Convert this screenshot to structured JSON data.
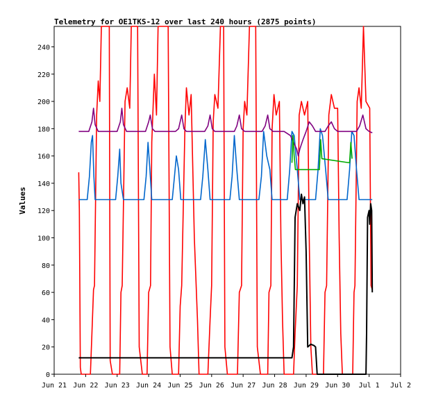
{
  "chart_data": {
    "type": "line",
    "title": "Telemetry for OE1TKS-12 over last 240 hours (2875 points)",
    "xlabel": "",
    "ylabel": "Values",
    "ylim": [
      0,
      255
    ],
    "yticks": [
      0,
      20,
      40,
      60,
      80,
      100,
      120,
      140,
      160,
      180,
      200,
      220,
      240
    ],
    "xlim": [
      0,
      11
    ],
    "xticks": [
      {
        "x": 0,
        "label": "Jun 21"
      },
      {
        "x": 1,
        "label": "Jun 22"
      },
      {
        "x": 2,
        "label": "Jun 23"
      },
      {
        "x": 3,
        "label": "Jun 24"
      },
      {
        "x": 4,
        "label": "Jun 25"
      },
      {
        "x": 5,
        "label": "Jun 26"
      },
      {
        "x": 6,
        "label": "Jun 27"
      },
      {
        "x": 7,
        "label": "Jun 28"
      },
      {
        "x": 8,
        "label": "Jun 29"
      },
      {
        "x": 9,
        "label": "Jun 30"
      },
      {
        "x": 10,
        "label": "Jul 1"
      },
      {
        "x": 11,
        "label": "Jul 2"
      }
    ],
    "grid": false,
    "legend": "none",
    "series": [
      {
        "color": "#ff0000",
        "points": [
          [
            0.78,
            148
          ],
          [
            0.8,
            120
          ],
          [
            0.83,
            5
          ],
          [
            0.86,
            0
          ],
          [
            1.15,
            0
          ],
          [
            1.2,
            30
          ],
          [
            1.25,
            62
          ],
          [
            1.28,
            65
          ],
          [
            1.35,
            190
          ],
          [
            1.4,
            215
          ],
          [
            1.45,
            200
          ],
          [
            1.5,
            255
          ],
          [
            1.75,
            255
          ],
          [
            1.78,
            10
          ],
          [
            1.85,
            0
          ],
          [
            2.08,
            0
          ],
          [
            2.12,
            60
          ],
          [
            2.16,
            65
          ],
          [
            2.25,
            200
          ],
          [
            2.32,
            210
          ],
          [
            2.4,
            195
          ],
          [
            2.45,
            255
          ],
          [
            2.65,
            255
          ],
          [
            2.7,
            20
          ],
          [
            2.8,
            0
          ],
          [
            2.95,
            0
          ],
          [
            3.0,
            60
          ],
          [
            3.06,
            65
          ],
          [
            3.1,
            170
          ],
          [
            3.18,
            220
          ],
          [
            3.25,
            190
          ],
          [
            3.3,
            255
          ],
          [
            3.62,
            255
          ],
          [
            3.68,
            20
          ],
          [
            3.75,
            0
          ],
          [
            3.95,
            0
          ],
          [
            4.0,
            50
          ],
          [
            4.05,
            65
          ],
          [
            4.15,
            180
          ],
          [
            4.2,
            210
          ],
          [
            4.28,
            190
          ],
          [
            4.35,
            205
          ],
          [
            4.45,
            100
          ],
          [
            4.55,
            40
          ],
          [
            4.6,
            0
          ],
          [
            4.88,
            0
          ],
          [
            4.95,
            40
          ],
          [
            5.0,
            65
          ],
          [
            5.05,
            185
          ],
          [
            5.1,
            205
          ],
          [
            5.2,
            195
          ],
          [
            5.28,
            255
          ],
          [
            5.38,
            255
          ],
          [
            5.42,
            20
          ],
          [
            5.5,
            0
          ],
          [
            5.82,
            0
          ],
          [
            5.88,
            60
          ],
          [
            5.95,
            65
          ],
          [
            6.0,
            180
          ],
          [
            6.05,
            200
          ],
          [
            6.12,
            190
          ],
          [
            6.2,
            255
          ],
          [
            6.4,
            255
          ],
          [
            6.45,
            20
          ],
          [
            6.55,
            0
          ],
          [
            6.78,
            0
          ],
          [
            6.82,
            60
          ],
          [
            6.88,
            65
          ],
          [
            6.92,
            180
          ],
          [
            6.98,
            205
          ],
          [
            7.05,
            190
          ],
          [
            7.15,
            200
          ],
          [
            7.2,
            100
          ],
          [
            7.25,
            40
          ],
          [
            7.3,
            0
          ],
          [
            7.6,
            0
          ],
          [
            7.65,
            30
          ],
          [
            7.72,
            65
          ],
          [
            7.78,
            190
          ],
          [
            7.85,
            200
          ],
          [
            7.95,
            190
          ],
          [
            8.05,
            200
          ],
          [
            8.1,
            100
          ],
          [
            8.15,
            20
          ],
          [
            8.2,
            0
          ],
          [
            8.55,
            0
          ],
          [
            8.6,
            60
          ],
          [
            8.65,
            65
          ],
          [
            8.72,
            190
          ],
          [
            8.8,
            205
          ],
          [
            8.9,
            195
          ],
          [
            9.0,
            195
          ],
          [
            9.05,
            100
          ],
          [
            9.1,
            30
          ],
          [
            9.15,
            0
          ],
          [
            9.48,
            0
          ],
          [
            9.52,
            60
          ],
          [
            9.55,
            65
          ],
          [
            9.62,
            200
          ],
          [
            9.68,
            210
          ],
          [
            9.75,
            195
          ],
          [
            9.82,
            255
          ],
          [
            9.9,
            200
          ],
          [
            10.02,
            195
          ],
          [
            10.06,
            65
          ],
          [
            10.1,
            62
          ]
        ]
      },
      {
        "color": "#0066cc",
        "points": [
          [
            0.78,
            128
          ],
          [
            0.9,
            128
          ],
          [
            1.05,
            128
          ],
          [
            1.12,
            145
          ],
          [
            1.18,
            170
          ],
          [
            1.22,
            175
          ],
          [
            1.26,
            145
          ],
          [
            1.3,
            128
          ],
          [
            1.4,
            128
          ],
          [
            1.95,
            128
          ],
          [
            2.02,
            145
          ],
          [
            2.08,
            165
          ],
          [
            2.12,
            140
          ],
          [
            2.2,
            128
          ],
          [
            2.85,
            128
          ],
          [
            2.92,
            145
          ],
          [
            2.98,
            170
          ],
          [
            3.04,
            150
          ],
          [
            3.1,
            128
          ],
          [
            3.75,
            128
          ],
          [
            3.82,
            145
          ],
          [
            3.88,
            160
          ],
          [
            3.95,
            150
          ],
          [
            4.02,
            128
          ],
          [
            4.65,
            128
          ],
          [
            4.72,
            145
          ],
          [
            4.8,
            172
          ],
          [
            4.88,
            150
          ],
          [
            4.95,
            128
          ],
          [
            5.58,
            128
          ],
          [
            5.65,
            145
          ],
          [
            5.72,
            175
          ],
          [
            5.8,
            150
          ],
          [
            5.88,
            128
          ],
          [
            6.5,
            128
          ],
          [
            6.58,
            145
          ],
          [
            6.65,
            178
          ],
          [
            6.75,
            160
          ],
          [
            6.85,
            150
          ],
          [
            6.92,
            128
          ],
          [
            7.4,
            128
          ],
          [
            7.48,
            150
          ],
          [
            7.55,
            178
          ],
          [
            7.62,
            175
          ],
          [
            7.72,
            150
          ],
          [
            7.8,
            128
          ],
          [
            8.3,
            128
          ],
          [
            8.38,
            150
          ],
          [
            8.45,
            180
          ],
          [
            8.52,
            175
          ],
          [
            8.62,
            150
          ],
          [
            8.7,
            128
          ],
          [
            9.3,
            128
          ],
          [
            9.38,
            150
          ],
          [
            9.45,
            178
          ],
          [
            9.52,
            175
          ],
          [
            9.6,
            150
          ],
          [
            9.68,
            128
          ],
          [
            10.1,
            128
          ]
        ]
      },
      {
        "color": "#800080",
        "points": [
          [
            0.78,
            178
          ],
          [
            1.1,
            178
          ],
          [
            1.2,
            185
          ],
          [
            1.25,
            195
          ],
          [
            1.3,
            183
          ],
          [
            1.4,
            178
          ],
          [
            2.0,
            178
          ],
          [
            2.1,
            185
          ],
          [
            2.15,
            195
          ],
          [
            2.2,
            183
          ],
          [
            2.3,
            178
          ],
          [
            2.9,
            178
          ],
          [
            3.0,
            185
          ],
          [
            3.05,
            190
          ],
          [
            3.12,
            180
          ],
          [
            3.2,
            178
          ],
          [
            3.85,
            178
          ],
          [
            3.95,
            180
          ],
          [
            4.05,
            190
          ],
          [
            4.12,
            180
          ],
          [
            4.2,
            178
          ],
          [
            4.78,
            178
          ],
          [
            4.88,
            182
          ],
          [
            4.95,
            190
          ],
          [
            5.02,
            180
          ],
          [
            5.1,
            178
          ],
          [
            5.72,
            178
          ],
          [
            5.8,
            182
          ],
          [
            5.88,
            190
          ],
          [
            5.95,
            180
          ],
          [
            6.05,
            178
          ],
          [
            6.6,
            178
          ],
          [
            6.7,
            182
          ],
          [
            6.78,
            190
          ],
          [
            6.85,
            180
          ],
          [
            6.95,
            178
          ],
          [
            7.3,
            178
          ],
          [
            7.5,
            175
          ],
          [
            7.6,
            170
          ],
          [
            7.7,
            165
          ],
          [
            7.75,
            160
          ],
          [
            7.8,
            165
          ],
          [
            7.9,
            172
          ],
          [
            8.0,
            178
          ],
          [
            8.1,
            185
          ],
          [
            8.2,
            182
          ],
          [
            8.3,
            178
          ],
          [
            8.6,
            178
          ],
          [
            8.7,
            182
          ],
          [
            8.8,
            185
          ],
          [
            8.9,
            180
          ],
          [
            9.0,
            178
          ],
          [
            9.6,
            178
          ],
          [
            9.7,
            182
          ],
          [
            9.8,
            190
          ],
          [
            9.9,
            180
          ],
          [
            10.0,
            178
          ],
          [
            10.1,
            177
          ]
        ]
      },
      {
        "color": "#00aa00",
        "points": [
          [
            7.55,
            155
          ],
          [
            7.58,
            175
          ],
          [
            7.62,
            160
          ],
          [
            7.66,
            150
          ],
          [
            8.42,
            150
          ],
          [
            8.46,
            172
          ],
          [
            8.5,
            158
          ],
          [
            9.38,
            155
          ],
          [
            9.42,
            170
          ],
          [
            9.46,
            158
          ]
        ]
      },
      {
        "color": "#000000",
        "points": [
          [
            0.78,
            12
          ],
          [
            1.0,
            12
          ],
          [
            2.0,
            12
          ],
          [
            3.0,
            12
          ],
          [
            4.0,
            12
          ],
          [
            5.0,
            12
          ],
          [
            6.0,
            12
          ],
          [
            7.0,
            12
          ],
          [
            7.55,
            12
          ],
          [
            7.6,
            20
          ],
          [
            7.65,
            115
          ],
          [
            7.72,
            125
          ],
          [
            7.8,
            120
          ],
          [
            7.85,
            132
          ],
          [
            7.9,
            125
          ],
          [
            7.95,
            130
          ],
          [
            8.0,
            90
          ],
          [
            8.05,
            20
          ],
          [
            8.15,
            22
          ],
          [
            8.25,
            21
          ],
          [
            8.3,
            20
          ],
          [
            8.35,
            0
          ],
          [
            9.0,
            0
          ],
          [
            9.5,
            0
          ],
          [
            9.9,
            0
          ],
          [
            9.92,
            30
          ],
          [
            9.95,
            115
          ],
          [
            10.0,
            120
          ],
          [
            10.02,
            110
          ],
          [
            10.05,
            125
          ],
          [
            10.08,
            120
          ],
          [
            10.1,
            60
          ]
        ]
      }
    ]
  }
}
